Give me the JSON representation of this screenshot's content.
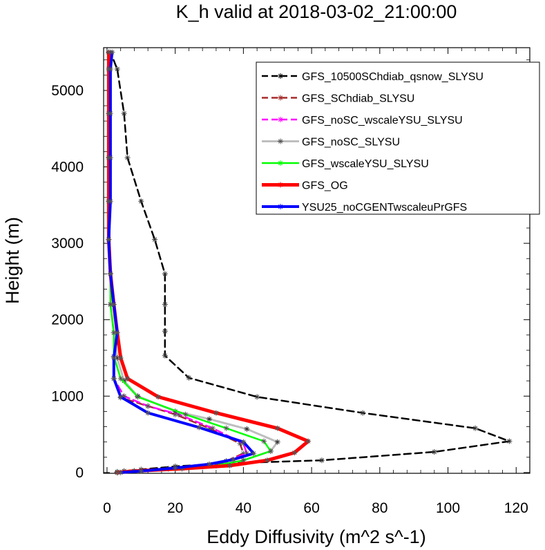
{
  "chart_data": {
    "type": "line",
    "title": "K_h valid at 2018-03-02_21:00:00",
    "xlabel": "Eddy Diffusivity (m^2 s^-1)",
    "ylabel": "Height (m)",
    "xlim": [
      0,
      120
    ],
    "ylim": [
      0,
      5500
    ],
    "xticks": [
      0,
      20,
      40,
      60,
      80,
      100,
      120
    ],
    "yticks": [
      0,
      1000,
      2000,
      3000,
      4000,
      5000
    ],
    "grid": false,
    "legend_position": "top-right",
    "series": [
      {
        "name": "GFS_10500SChdiab_qsnow_SLYSU",
        "color": "#000000",
        "dash": "10,6",
        "width": 2.5,
        "marker": "*",
        "points": [
          [
            3,
            10
          ],
          [
            5,
            20
          ],
          [
            10,
            40
          ],
          [
            20,
            80
          ],
          [
            35,
            120
          ],
          [
            63,
            160
          ],
          [
            96,
            270
          ],
          [
            118,
            410
          ],
          [
            108,
            580
          ],
          [
            75,
            780
          ],
          [
            44,
            990
          ],
          [
            24,
            1240
          ],
          [
            17,
            1530
          ],
          [
            17,
            1850
          ],
          [
            17,
            2200
          ],
          [
            17,
            2600
          ],
          [
            14,
            3050
          ],
          [
            10,
            3550
          ],
          [
            6,
            4120
          ],
          [
            5,
            4700
          ],
          [
            3,
            5280
          ],
          [
            1,
            5500
          ]
        ]
      },
      {
        "name": "GFS_SChdiab_SLYSU",
        "color": "#A52A2A",
        "dash": "10,6",
        "width": 2.5,
        "marker": "*",
        "points": [
          [
            3,
            0
          ],
          [
            8,
            20
          ],
          [
            18,
            50
          ],
          [
            28,
            80
          ],
          [
            35,
            150
          ],
          [
            40,
            250
          ],
          [
            39,
            380
          ],
          [
            30,
            580
          ],
          [
            20,
            760
          ],
          [
            12,
            870
          ],
          [
            4,
            980
          ],
          [
            2,
            1230
          ],
          [
            2,
            1520
          ],
          [
            2,
            1830
          ],
          [
            1,
            2200
          ],
          [
            1,
            2600
          ],
          [
            0.5,
            3050
          ],
          [
            0.5,
            3550
          ],
          [
            0.5,
            4120
          ],
          [
            0.5,
            4700
          ],
          [
            0.5,
            5280
          ],
          [
            0.5,
            5500
          ]
        ]
      },
      {
        "name": "GFS_noSC_wscaleYSU_SLYSU",
        "color": "#FF00FF",
        "dash": "10,6",
        "width": 2.5,
        "marker": "*",
        "points": [
          [
            3,
            0
          ],
          [
            8,
            20
          ],
          [
            18,
            50
          ],
          [
            28,
            80
          ],
          [
            35,
            150
          ],
          [
            41,
            250
          ],
          [
            40,
            380
          ],
          [
            31,
            580
          ],
          [
            21,
            760
          ],
          [
            12,
            870
          ],
          [
            5,
            1000
          ],
          [
            2,
            1230
          ],
          [
            2,
            1520
          ],
          [
            2,
            1830
          ],
          [
            1,
            2200
          ],
          [
            1,
            2600
          ],
          [
            0.5,
            3050
          ],
          [
            0.5,
            3550
          ],
          [
            0.5,
            4120
          ],
          [
            0.5,
            4700
          ],
          [
            0.5,
            5280
          ],
          [
            0.5,
            5500
          ]
        ]
      },
      {
        "name": "GFS_noSC_SLYSU",
        "color": "#BEBEBE",
        "dash": "",
        "width": 3,
        "marker": "*",
        "points": [
          [
            3,
            0
          ],
          [
            8,
            20
          ],
          [
            20,
            50
          ],
          [
            32,
            90
          ],
          [
            40,
            160
          ],
          [
            48,
            280
          ],
          [
            50,
            400
          ],
          [
            41,
            570
          ],
          [
            30,
            700
          ],
          [
            20,
            800
          ],
          [
            9,
            1000
          ],
          [
            5,
            1200
          ],
          [
            3,
            1500
          ],
          [
            2,
            1830
          ],
          [
            1,
            2200
          ],
          [
            1,
            2600
          ],
          [
            0.5,
            3050
          ],
          [
            0.5,
            3550
          ],
          [
            0.5,
            4120
          ],
          [
            0.5,
            4700
          ],
          [
            0.5,
            5280
          ],
          [
            0.5,
            5500
          ]
        ]
      },
      {
        "name": "GFS_wscaleYSU_SLYSU",
        "color": "#00FF00",
        "dash": "",
        "width": 2.5,
        "marker": "*",
        "points": [
          [
            3,
            0
          ],
          [
            8,
            20
          ],
          [
            20,
            50
          ],
          [
            32,
            90
          ],
          [
            40,
            160
          ],
          [
            48,
            280
          ],
          [
            46,
            410
          ],
          [
            35,
            580
          ],
          [
            23,
            760
          ],
          [
            9,
            990
          ],
          [
            4,
            1230
          ],
          [
            2,
            1520
          ],
          [
            2,
            1830
          ],
          [
            1,
            2200
          ],
          [
            1,
            2600
          ],
          [
            0.5,
            3050
          ],
          [
            0.5,
            3550
          ],
          [
            0.5,
            4120
          ],
          [
            0.5,
            4700
          ],
          [
            0.5,
            5280
          ],
          [
            0.5,
            5500
          ]
        ]
      },
      {
        "name": "GFS_OG",
        "color": "#FF0000",
        "dash": "",
        "width": 5,
        "marker": "*",
        "points": [
          [
            3,
            0
          ],
          [
            8,
            20
          ],
          [
            22,
            50
          ],
          [
            36,
            90
          ],
          [
            47,
            160
          ],
          [
            55,
            260
          ],
          [
            59,
            410
          ],
          [
            50,
            580
          ],
          [
            32,
            780
          ],
          [
            15,
            990
          ],
          [
            6,
            1230
          ],
          [
            4,
            1500
          ],
          [
            3,
            1830
          ],
          [
            2,
            2200
          ],
          [
            1,
            2600
          ],
          [
            0.5,
            3050
          ],
          [
            0.5,
            3550
          ],
          [
            0.5,
            4120
          ],
          [
            0.5,
            4700
          ],
          [
            0.5,
            5280
          ],
          [
            0.5,
            5500
          ]
        ]
      },
      {
        "name": "YSU25_noCGENTwscaleuPrGFS",
        "color": "#0000FF",
        "dash": "",
        "width": 4,
        "marker": "*",
        "points": [
          [
            4,
            0
          ],
          [
            10,
            20
          ],
          [
            20,
            60
          ],
          [
            30,
            110
          ],
          [
            37,
            170
          ],
          [
            43,
            250
          ],
          [
            40,
            400
          ],
          [
            27,
            590
          ],
          [
            12,
            780
          ],
          [
            4,
            990
          ],
          [
            2,
            1230
          ],
          [
            2,
            1500
          ],
          [
            3,
            1830
          ],
          [
            2,
            2200
          ],
          [
            1,
            2600
          ],
          [
            0.5,
            3050
          ],
          [
            1,
            3550
          ],
          [
            1,
            4120
          ],
          [
            1,
            4700
          ],
          [
            1,
            5280
          ],
          [
            1.5,
            5500
          ]
        ]
      }
    ]
  }
}
